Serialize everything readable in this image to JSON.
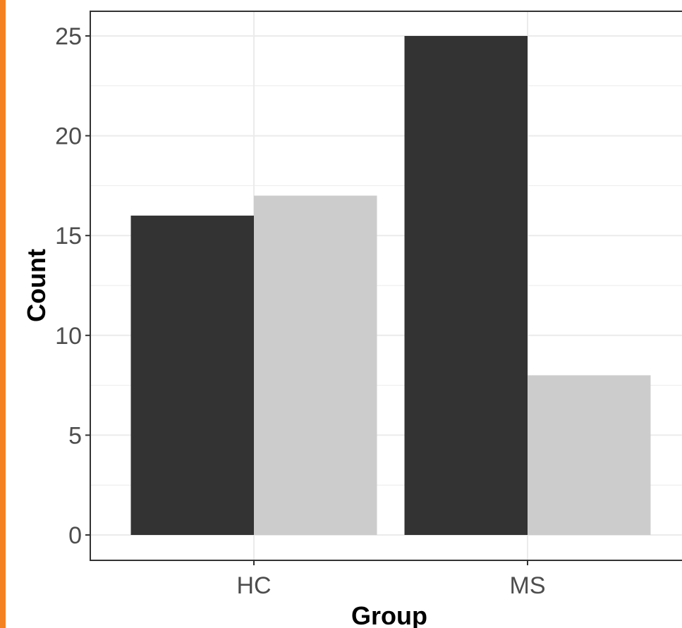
{
  "colors": {
    "accent_bar": "#f58220",
    "background": "#ffffff",
    "grid": "#ebebeb",
    "panel_border": "#333333",
    "tick_text": "#4d4d4d",
    "axis_title_text": "#000000"
  },
  "chart_data": {
    "type": "bar",
    "title": "",
    "xlabel": "Group",
    "ylabel": "Count",
    "categories": [
      "HC",
      "MS"
    ],
    "series": [
      {
        "color": "#333333",
        "values": [
          16,
          25
        ]
      },
      {
        "color": "#cccccc",
        "values": [
          17,
          8
        ]
      }
    ],
    "ylim": [
      -1.3,
      26.3
    ],
    "yticks": [
      0,
      5,
      10,
      15,
      20,
      25
    ],
    "grid": true,
    "legend": "none"
  }
}
